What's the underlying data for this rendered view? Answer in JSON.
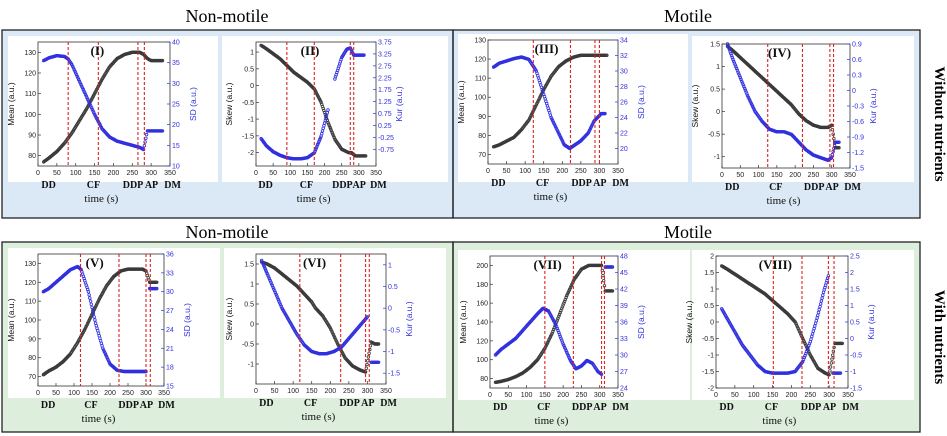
{
  "figure": {
    "row_labels": [
      "Without nutrients",
      "With nutrients"
    ],
    "group_headers": [
      "Non-motile",
      "Motile",
      "Non-motile",
      "Motile"
    ],
    "phase_labels": [
      "DD",
      "CF",
      "DDP",
      "AP",
      "DM"
    ],
    "xlabel": "time (s)",
    "colors": {
      "left_series": "#3a3a3a",
      "right_series": "#3030e0",
      "phase_line": "#dd2222",
      "row1_bg": "#dbe9f6",
      "row2_bg": "#ddeedd",
      "frame": "#222222"
    }
  },
  "chart_data": [
    {
      "type": "scatter",
      "panel": "(I)",
      "group": "Non-motile",
      "row": "Without nutrients",
      "xlabel": "time (s)",
      "ylabel": "Mean (a.u.)",
      "y2label": "SD (a.u.)",
      "xlim": [
        0,
        350
      ],
      "ylim": [
        75,
        135
      ],
      "y2lim": [
        10,
        40
      ],
      "xticks": [
        0,
        50,
        100,
        150,
        200,
        250,
        300,
        350
      ],
      "yticks": [
        80,
        90,
        100,
        110,
        120,
        130
      ],
      "y2ticks": [
        10,
        15,
        20,
        25,
        30,
        35,
        40
      ],
      "phase_lines": [
        80,
        160,
        265,
        282
      ],
      "series": [
        {
          "name": "Mean",
          "axis": "left",
          "x": [
            15,
            30,
            50,
            70,
            90,
            110,
            130,
            150,
            170,
            190,
            210,
            230,
            250,
            270,
            280,
            290,
            300,
            310,
            320,
            330
          ],
          "y": [
            77,
            79,
            82,
            86,
            91,
            97,
            103,
            110,
            117,
            123,
            127,
            129,
            130,
            130,
            129,
            127,
            126,
            126,
            126,
            126
          ]
        },
        {
          "name": "SD",
          "axis": "right",
          "x": [
            15,
            30,
            50,
            70,
            80,
            90,
            110,
            130,
            150,
            170,
            190,
            210,
            230,
            250,
            270,
            280,
            290,
            300,
            310,
            320,
            330
          ],
          "y": [
            35.5,
            36.2,
            36.7,
            36.5,
            35.9,
            34.5,
            30.5,
            26.5,
            22.5,
            19,
            17,
            16,
            15.5,
            15,
            14.5,
            14,
            18.5,
            18.5,
            18.5,
            18.5,
            18.5
          ]
        }
      ]
    },
    {
      "type": "scatter",
      "panel": "(II)",
      "group": "Non-motile",
      "row": "Without nutrients",
      "xlabel": "time (s)",
      "ylabel": "Skew (a.u.)",
      "y2label": "Kur (a.u.)",
      "xlim": [
        0,
        350
      ],
      "ylim": [
        -2.4,
        1.3
      ],
      "y2lim": [
        -1.45,
        3.75
      ],
      "xticks": [
        0,
        50,
        100,
        150,
        200,
        250,
        300,
        350
      ],
      "yticks": [
        -2.0,
        -1.5,
        -1.0,
        -0.5,
        0.0,
        0.5,
        1.0
      ],
      "y2ticks": [
        -0.75,
        -0.25,
        0.25,
        0.75,
        1.25,
        1.75,
        2.25,
        2.75,
        3.25,
        3.75
      ],
      "phase_lines": [
        90,
        170,
        275,
        285
      ],
      "series": [
        {
          "name": "Skew",
          "axis": "left",
          "x": [
            15,
            30,
            50,
            70,
            90,
            110,
            130,
            150,
            170,
            190,
            210,
            230,
            250,
            260,
            270,
            278,
            290,
            300,
            310,
            320
          ],
          "y": [
            1.2,
            1.1,
            0.95,
            0.8,
            0.6,
            0.4,
            0.25,
            0.1,
            -0.1,
            -0.5,
            -1.1,
            -1.6,
            -1.9,
            -1.95,
            -2.0,
            -2.0,
            -2.1,
            -2.1,
            -2.1,
            -2.1
          ]
        },
        {
          "name": "Kur",
          "axis": "right",
          "x": [
            15,
            30,
            50,
            70,
            90,
            110,
            130,
            150,
            170,
            190,
            210,
            230,
            250,
            265,
            275,
            285,
            300,
            315
          ],
          "y": [
            -0.3,
            -0.6,
            -0.85,
            -1.0,
            -1.1,
            -1.15,
            -1.15,
            -1.1,
            -0.9,
            -0.2,
            0.9,
            2.2,
            3.1,
            3.45,
            3.5,
            3.2,
            3.2,
            3.2
          ]
        }
      ]
    },
    {
      "type": "scatter",
      "panel": "(III)",
      "group": "Motile",
      "row": "Without nutrients",
      "xlabel": "time (s)",
      "ylabel": "Mean (a.u.)",
      "y2label": "SD (a.u.)",
      "xlim": [
        0,
        350
      ],
      "ylim": [
        65,
        130
      ],
      "y2lim": [
        18,
        34
      ],
      "xticks": [
        0,
        50,
        100,
        150,
        200,
        250,
        300,
        350
      ],
      "yticks": [
        70,
        80,
        90,
        100,
        110,
        120,
        130
      ],
      "y2ticks": [
        20,
        22,
        24,
        26,
        28,
        30,
        32,
        34
      ],
      "phase_lines": [
        122,
        222,
        288,
        300
      ],
      "series": [
        {
          "name": "Mean",
          "axis": "left",
          "x": [
            15,
            30,
            50,
            70,
            90,
            110,
            130,
            150,
            170,
            190,
            210,
            230,
            250,
            270,
            290,
            300,
            310,
            320
          ],
          "y": [
            74,
            75,
            77,
            79,
            83,
            88,
            96,
            104,
            111,
            116,
            119,
            121,
            122,
            122,
            122,
            122,
            122,
            122
          ]
        },
        {
          "name": "SD",
          "axis": "right",
          "x": [
            15,
            30,
            50,
            70,
            90,
            110,
            130,
            150,
            170,
            190,
            205,
            220,
            235,
            250,
            270,
            285,
            295,
            305,
            315
          ],
          "y": [
            30.5,
            31,
            31.3,
            31.6,
            31.8,
            31.5,
            30,
            27,
            24,
            22,
            20.5,
            20,
            20.5,
            21,
            22,
            23.5,
            24,
            24.5,
            24.5
          ]
        }
      ]
    },
    {
      "type": "scatter",
      "panel": "(IV)",
      "group": "Motile",
      "row": "Without nutrients",
      "xlabel": "time (s)",
      "ylabel": "Skew (a.u.)",
      "y2label": "Kur (a.u.)",
      "xlim": [
        0,
        350
      ],
      "ylim": [
        -1.25,
        1.5
      ],
      "y2lim": [
        -1.5,
        0.9
      ],
      "xticks": [
        0,
        50,
        100,
        150,
        200,
        250,
        300,
        350
      ],
      "yticks": [
        -1.0,
        -0.5,
        0.0,
        0.5,
        1.0,
        1.5
      ],
      "y2ticks": [
        -1.5,
        -1.2,
        -0.9,
        -0.6,
        -0.3,
        0.0,
        0.3,
        0.6,
        0.9
      ],
      "phase_lines": [
        125,
        220,
        295,
        305
      ],
      "series": [
        {
          "name": "Skew",
          "axis": "left",
          "x": [
            15,
            30,
            50,
            70,
            90,
            110,
            130,
            150,
            170,
            190,
            210,
            230,
            250,
            270,
            290,
            300,
            310,
            320
          ],
          "y": [
            1.45,
            1.35,
            1.2,
            1.05,
            0.9,
            0.75,
            0.6,
            0.45,
            0.3,
            0.15,
            -0.05,
            -0.2,
            -0.3,
            -0.35,
            -0.35,
            -0.3,
            -0.8,
            -0.8
          ]
        },
        {
          "name": "Kur",
          "axis": "right",
          "x": [
            15,
            30,
            50,
            70,
            90,
            110,
            130,
            150,
            170,
            190,
            210,
            230,
            250,
            270,
            290,
            300,
            310,
            320
          ],
          "y": [
            0.9,
            0.6,
            0.25,
            -0.1,
            -0.4,
            -0.6,
            -0.75,
            -0.8,
            -0.8,
            -0.85,
            -1.0,
            -1.15,
            -1.25,
            -1.3,
            -1.35,
            -1.3,
            -1.0,
            -1.0
          ]
        }
      ]
    },
    {
      "type": "scatter",
      "panel": "(V)",
      "group": "Non-motile",
      "row": "With nutrients",
      "xlabel": "time (s)",
      "ylabel": "Mean (a.u.)",
      "y2label": "SD (a.u.)",
      "xlim": [
        0,
        350
      ],
      "ylim": [
        65,
        135
      ],
      "y2lim": [
        15,
        36
      ],
      "xticks": [
        0,
        50,
        100,
        150,
        200,
        250,
        300,
        350
      ],
      "yticks": [
        70,
        80,
        90,
        100,
        110,
        120,
        130
      ],
      "y2ticks": [
        15,
        18,
        21,
        24,
        27,
        30,
        33,
        36
      ],
      "phase_lines": [
        118,
        225,
        300,
        312
      ],
      "series": [
        {
          "name": "Mean",
          "axis": "left",
          "x": [
            15,
            30,
            50,
            70,
            90,
            110,
            130,
            150,
            170,
            190,
            210,
            230,
            250,
            270,
            290,
            300,
            310,
            320,
            330
          ],
          "y": [
            71,
            73,
            75,
            78,
            82,
            88,
            95,
            103,
            111,
            118,
            123,
            126,
            127,
            127,
            127,
            126,
            120,
            120,
            120
          ]
        },
        {
          "name": "SD",
          "axis": "right",
          "x": [
            15,
            30,
            50,
            70,
            90,
            110,
            120,
            140,
            160,
            180,
            200,
            220,
            240,
            260,
            280,
            300,
            310,
            320,
            330
          ],
          "y": [
            30,
            30.5,
            31.5,
            32.5,
            33.5,
            34,
            33.5,
            30,
            25,
            21,
            18.5,
            17.5,
            17.3,
            17.3,
            17.3,
            17.3,
            30.5,
            30.5,
            30.5
          ]
        }
      ]
    },
    {
      "type": "scatter",
      "panel": "(VI)",
      "group": "Non-motile",
      "row": "With nutrients",
      "xlabel": "time (s)",
      "ylabel": "Skew (a.u.)",
      "y2label": "Kur (a.u.)",
      "xlim": [
        0,
        350
      ],
      "ylim": [
        -1.5,
        1.75
      ],
      "y2lim": [
        -1.75,
        1.25
      ],
      "xticks": [
        0,
        50,
        100,
        150,
        200,
        250,
        300,
        350
      ],
      "yticks": [
        -1.0,
        -0.5,
        0.0,
        0.5,
        1.0,
        1.5
      ],
      "y2ticks": [
        -1.5,
        -1.0,
        -0.5,
        0.0,
        0.5,
        1.0
      ],
      "phase_lines": [
        118,
        228,
        295,
        305
      ],
      "series": [
        {
          "name": "Skew",
          "axis": "left",
          "x": [
            15,
            30,
            50,
            70,
            90,
            110,
            130,
            150,
            160,
            180,
            200,
            220,
            240,
            260,
            280,
            295,
            310,
            320,
            330
          ],
          "y": [
            1.55,
            1.5,
            1.4,
            1.25,
            1.1,
            0.95,
            0.75,
            0.55,
            0.4,
            0.2,
            -0.1,
            -0.5,
            -0.85,
            -1.05,
            -1.15,
            -1.2,
            -0.45,
            -0.5,
            -0.5
          ]
        },
        {
          "name": "Kur",
          "axis": "right",
          "x": [
            15,
            30,
            50,
            70,
            90,
            110,
            130,
            150,
            170,
            190,
            210,
            230,
            250,
            270,
            290,
            300,
            310,
            320,
            330
          ],
          "y": [
            1.1,
            0.8,
            0.4,
            0.0,
            -0.3,
            -0.6,
            -0.85,
            -1.0,
            -1.05,
            -1.05,
            -1.0,
            -0.9,
            -0.7,
            -0.5,
            -0.3,
            -0.2,
            -1.25,
            -1.25,
            -1.25
          ]
        }
      ]
    },
    {
      "type": "scatter",
      "panel": "(VII)",
      "group": "Motile",
      "row": "With nutrients",
      "xlabel": "time (s)",
      "ylabel": "Mean (a.u.)",
      "y2label": "SD (a.u.)",
      "xlim": [
        0,
        350
      ],
      "ylim": [
        70,
        210
      ],
      "y2lim": [
        24,
        48
      ],
      "xticks": [
        0,
        50,
        100,
        150,
        200,
        250,
        300,
        350
      ],
      "yticks": [
        80,
        100,
        120,
        140,
        160,
        180,
        200
      ],
      "y2ticks": [
        24,
        27,
        30,
        33,
        36,
        39,
        42,
        45,
        48
      ],
      "phase_lines": [
        150,
        228,
        305,
        313
      ],
      "series": [
        {
          "name": "Mean",
          "axis": "left",
          "x": [
            15,
            30,
            50,
            70,
            90,
            110,
            130,
            150,
            170,
            190,
            210,
            230,
            250,
            270,
            290,
            305,
            315,
            325,
            335
          ],
          "y": [
            76,
            77,
            79,
            82,
            86,
            92,
            100,
            112,
            128,
            148,
            168,
            185,
            196,
            200,
            200,
            200,
            173,
            173,
            173
          ]
        },
        {
          "name": "SD",
          "axis": "right",
          "x": [
            15,
            30,
            50,
            70,
            90,
            110,
            130,
            145,
            160,
            180,
            200,
            220,
            235,
            250,
            265,
            280,
            295,
            305,
            315,
            325,
            335
          ],
          "y": [
            30,
            31,
            32,
            33,
            34.5,
            36,
            37.5,
            38.5,
            38,
            35.5,
            32,
            29,
            27.5,
            28,
            29,
            28.5,
            27,
            26.5,
            46,
            46,
            46
          ]
        }
      ]
    },
    {
      "type": "scatter",
      "panel": "(VIII)",
      "group": "Motile",
      "row": "With nutrients",
      "xlabel": "time (s)",
      "ylabel": "Skew (a.u.)",
      "y2label": "Kur (a.u.)",
      "xlim": [
        0,
        350
      ],
      "ylim": [
        -2.0,
        2.0
      ],
      "y2lim": [
        -1.5,
        2.5
      ],
      "xticks": [
        0,
        50,
        100,
        150,
        200,
        250,
        300,
        350
      ],
      "yticks": [
        -2.0,
        -1.5,
        -1.0,
        -0.5,
        0.0,
        0.5,
        1.0,
        1.5,
        2.0
      ],
      "y2ticks": [
        -1.5,
        -1.0,
        -0.5,
        0.0,
        0.5,
        1.0,
        1.5,
        2.0,
        2.5
      ],
      "phase_lines": [
        152,
        228,
        298,
        313
      ],
      "series": [
        {
          "name": "Skew",
          "axis": "left",
          "x": [
            15,
            30,
            50,
            70,
            90,
            110,
            130,
            150,
            170,
            190,
            210,
            230,
            250,
            270,
            290,
            300,
            315,
            325,
            335
          ],
          "y": [
            1.7,
            1.6,
            1.45,
            1.3,
            1.15,
            1.0,
            0.85,
            0.65,
            0.45,
            0.25,
            0.0,
            -0.5,
            -1.0,
            -1.4,
            -1.55,
            -1.6,
            -0.65,
            -0.65,
            -0.65
          ]
        },
        {
          "name": "Kur",
          "axis": "right",
          "x": [
            15,
            30,
            50,
            70,
            90,
            110,
            130,
            150,
            170,
            190,
            210,
            230,
            250,
            270,
            285,
            298,
            310,
            320,
            330
          ],
          "y": [
            0.9,
            0.6,
            0.2,
            -0.2,
            -0.5,
            -0.8,
            -1.0,
            -1.05,
            -1.05,
            -1.05,
            -1.0,
            -0.7,
            -0.1,
            0.7,
            1.4,
            1.9,
            -1.05,
            -1.05,
            -1.05
          ]
        }
      ]
    }
  ]
}
